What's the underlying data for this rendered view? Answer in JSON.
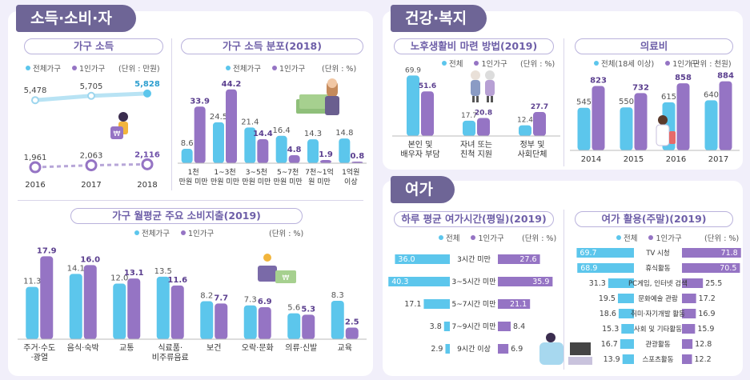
{
  "sections": {
    "income": "소득·소비·자산",
    "health": "건강·복지",
    "leisure": "여가"
  },
  "colors": {
    "total": "#5cc6ec",
    "single": "#9574c4",
    "tag": "#6e6596"
  },
  "household_income": {
    "title": "가구 소득",
    "legend_total": "전체가구",
    "legend_single": "1인가구",
    "unit": "(단위 : 만원)",
    "chart_data": {
      "type": "line",
      "x": [
        "2016",
        "2017",
        "2018"
      ],
      "series": [
        {
          "name": "전체가구",
          "values": [
            5478,
            5705,
            5828
          ]
        },
        {
          "name": "1인가구",
          "values": [
            1961,
            2063,
            2116
          ]
        }
      ],
      "value_labels": [
        [
          "5,478",
          "5,705",
          "5,828"
        ],
        [
          "1,961",
          "2,063",
          "2,116"
        ]
      ]
    }
  },
  "income_distribution": {
    "title": "가구 소득 분포(2018)",
    "legend_total": "전체가구",
    "legend_single": "1인가구",
    "unit": "(단위 : %)",
    "chart_data": {
      "type": "bar",
      "categories": [
        "1천 만원 미만",
        "1~3천 만원 미만",
        "3~5천 만원 미만",
        "5~7천 만원 미만",
        "7천~1억 원 미만",
        "1억원 이상"
      ],
      "category_lines": [
        [
          "1천",
          "만원 미만"
        ],
        [
          "1~3천",
          "만원 미만"
        ],
        [
          "3~5천",
          "만원 미만"
        ],
        [
          "5~7천",
          "만원 미만"
        ],
        [
          "7천~1억",
          "원 미만"
        ],
        [
          "1억원",
          "이상"
        ]
      ],
      "series": [
        {
          "name": "전체가구",
          "values": [
            8.6,
            24.5,
            21.4,
            16.4,
            14.3,
            14.8
          ]
        },
        {
          "name": "1인가구",
          "values": [
            33.9,
            44.2,
            14.4,
            4.8,
            1.9,
            0.8
          ]
        }
      ]
    }
  },
  "consumption": {
    "title": "가구 월평균 주요 소비지출(2019)",
    "legend_total": "전체가구",
    "legend_single": "1인가구",
    "unit": "(단위 : %)",
    "chart_data": {
      "type": "bar",
      "categories": [
        "주거·수도·광열",
        "음식·숙박",
        "교통",
        "식료품·비주류음료",
        "보건",
        "오락·문화",
        "의류·신발",
        "교육"
      ],
      "category_lines": [
        [
          "주거·수도",
          "·광열"
        ],
        [
          "음식·숙박"
        ],
        [
          "교통"
        ],
        [
          "식료품·",
          "비주류음료"
        ],
        [
          "보건"
        ],
        [
          "오락·문화"
        ],
        [
          "의류·신발"
        ],
        [
          "교육"
        ]
      ],
      "series": [
        {
          "name": "전체가구",
          "values": [
            11.3,
            14.1,
            12.0,
            13.5,
            8.2,
            7.3,
            5.6,
            8.3
          ]
        },
        {
          "name": "1인가구",
          "values": [
            17.9,
            16.0,
            13.1,
            11.6,
            7.7,
            6.9,
            5.3,
            2.5
          ]
        }
      ]
    }
  },
  "retirement": {
    "title": "노후생활비 마련 방법(2019)",
    "legend_total": "전체",
    "legend_single": "1인가구",
    "unit": "(단위 : %)",
    "chart_data": {
      "type": "bar",
      "categories": [
        "본인 및 배우자 부담",
        "자녀 또는 친척 지원",
        "정부 및 사회단체"
      ],
      "category_lines": [
        [
          "본인 및",
          "배우자 부담"
        ],
        [
          "자녀 또는",
          "친척 지원"
        ],
        [
          "정부 및",
          "사회단체"
        ]
      ],
      "series": [
        {
          "name": "전체",
          "values": [
            69.9,
            17.7,
            12.4
          ]
        },
        {
          "name": "1인가구",
          "values": [
            51.6,
            20.8,
            27.7
          ]
        }
      ]
    }
  },
  "medical": {
    "title": "의료비",
    "legend_total": "전체(18세 이상)",
    "legend_single": "1인가구",
    "unit": "(단위 : 천원)",
    "chart_data": {
      "type": "bar",
      "categories": [
        "2014",
        "2015",
        "2016",
        "2017"
      ],
      "series": [
        {
          "name": "전체(18세 이상)",
          "values": [
            545,
            550,
            615,
            640
          ]
        },
        {
          "name": "1인가구",
          "values": [
            823,
            732,
            858,
            884
          ]
        }
      ]
    }
  },
  "leisure_time": {
    "title": "하루 평균 여가시간(평일)(2019)",
    "legend_total": "전체",
    "legend_single": "1인가구",
    "unit": "(단위 : %)",
    "chart_data": {
      "type": "bar",
      "categories": [
        "3시간 미만",
        "3~5시간 미만",
        "5~7시간 미만",
        "7~9시간 미만",
        "9시간 이상"
      ],
      "series": [
        {
          "name": "전체",
          "values": [
            36.0,
            40.3,
            17.1,
            3.8,
            2.9
          ]
        },
        {
          "name": "1인가구",
          "values": [
            27.6,
            35.9,
            21.1,
            8.4,
            6.9
          ]
        }
      ]
    }
  },
  "leisure_activity": {
    "title": "여가 활용(주말)(2019)",
    "legend_total": "전체",
    "legend_single": "1인가구",
    "unit": "(단위 : %)",
    "chart_data": {
      "type": "bar",
      "categories": [
        "TV 시청",
        "휴식활동",
        "PC게임, 인터넷 검색",
        "문화예술 관람",
        "취미·자기개발 활동",
        "사회 및 기타활동",
        "관광활동",
        "스포츠활동"
      ],
      "series": [
        {
          "name": "전체",
          "values": [
            69.7,
            68.9,
            31.3,
            19.5,
            18.6,
            15.3,
            16.7,
            13.9
          ]
        },
        {
          "name": "1인가구",
          "values": [
            71.8,
            70.5,
            25.5,
            17.2,
            16.9,
            15.9,
            12.8,
            12.2
          ]
        }
      ]
    }
  }
}
